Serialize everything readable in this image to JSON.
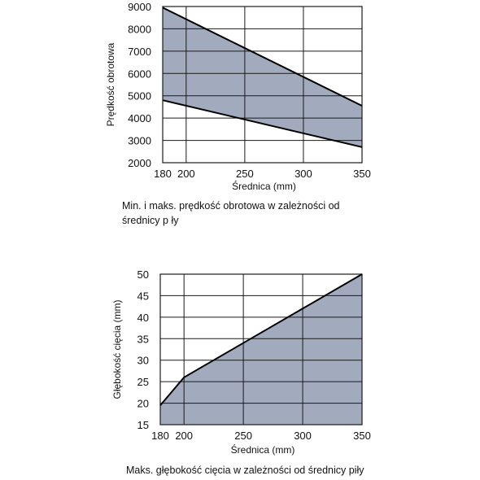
{
  "chart_data": [
    {
      "type": "area",
      "ylabel": "Prędkość obrotowa",
      "xlabel": "Średnica (mm)",
      "caption": "Min. i maks. prędkość obrotowa w zależności od średnicy p ły",
      "x_ticks": [
        "180",
        "200",
        "250",
        "300",
        "350"
      ],
      "y_ticks": [
        "2000",
        "3000",
        "4000",
        "5000",
        "6000",
        "7000",
        "8000",
        "9000"
      ],
      "xlim": [
        180,
        350
      ],
      "ylim": [
        2000,
        9000
      ],
      "grid": true,
      "series": [
        {
          "x": [
            180,
            350
          ],
          "y": [
            8950,
            4550
          ]
        },
        {
          "x": [
            180,
            350
          ],
          "y": [
            4800,
            2700
          ]
        }
      ],
      "fill_color": "#a1abbd"
    },
    {
      "type": "area",
      "ylabel": "Głębokość cięcia (mm)",
      "xlabel": "Średnica (mm)",
      "caption": "Maks. głębokość cięcia w zależności od średnicy piły",
      "x_ticks": [
        "180",
        "200",
        "250",
        "300",
        "350"
      ],
      "y_ticks": [
        "15",
        "20",
        "25",
        "30",
        "35",
        "40",
        "45",
        "50"
      ],
      "xlim": [
        180,
        350
      ],
      "ylim": [
        15,
        50
      ],
      "grid": true,
      "series": [
        {
          "x": [
            180,
            200,
            250,
            300,
            350
          ],
          "y": [
            19.5,
            26,
            34,
            42,
            50
          ]
        }
      ],
      "fill_color": "#a1abbd"
    }
  ]
}
